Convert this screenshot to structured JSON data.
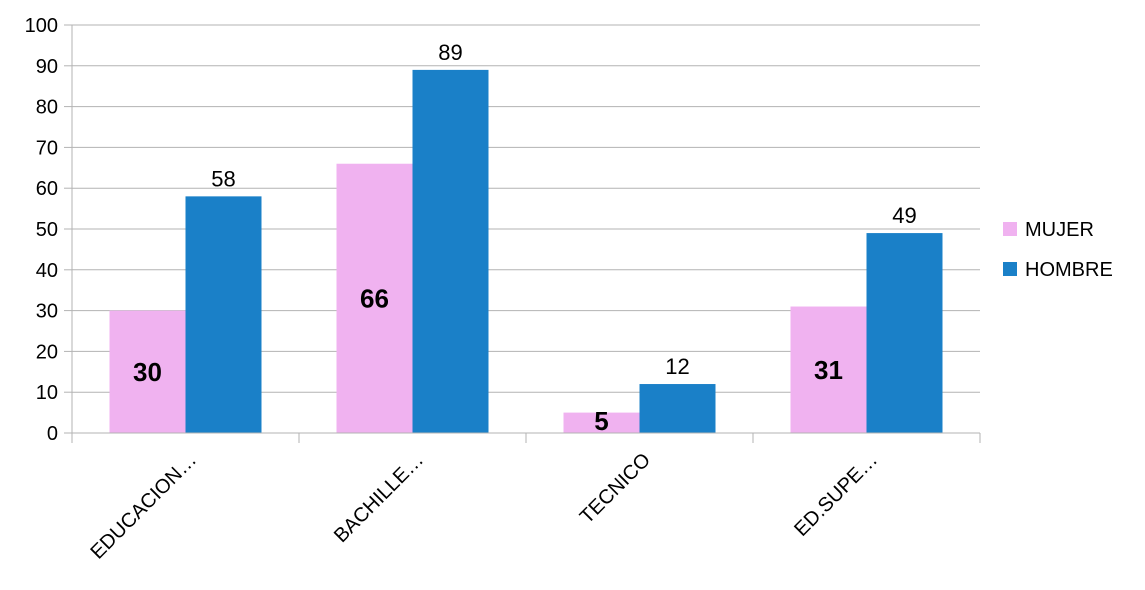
{
  "chart_data": {
    "type": "bar",
    "categories": [
      "EDUCACION…",
      "BACHILLE…",
      "TECNICO",
      "ED.SUPE…"
    ],
    "series": [
      {
        "name": "MUJER",
        "values": [
          30,
          66,
          5,
          31
        ],
        "color": "#f0b2f0",
        "label_style": "inside-bold"
      },
      {
        "name": "HOMBRE",
        "values": [
          58,
          89,
          12,
          49
        ],
        "color": "#1a80c8",
        "label_style": "above"
      }
    ],
    "ylim": [
      0,
      100
    ],
    "yticks": [
      0,
      10,
      20,
      30,
      40,
      50,
      60,
      70,
      80,
      90,
      100
    ],
    "grid": true,
    "grid_color": "#b3b3b3",
    "legend_position": "right",
    "title": "",
    "xlabel": "",
    "ylabel": ""
  }
}
